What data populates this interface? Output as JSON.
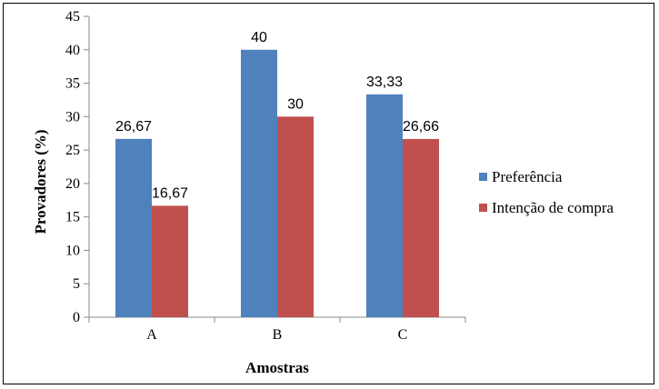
{
  "chart_data": {
    "type": "bar",
    "categories": [
      "A",
      "B",
      "C"
    ],
    "series": [
      {
        "name": "Preferência",
        "values": [
          26.67,
          40,
          33.33
        ],
        "labels": [
          "26,67",
          "40",
          "33,33"
        ],
        "color": "#4F81BD"
      },
      {
        "name": "Intenção de compra",
        "values": [
          16.67,
          30,
          26.66
        ],
        "labels": [
          "16,67",
          "30",
          "26,66"
        ],
        "color": "#C0504D"
      }
    ],
    "xlabel": "Amostras",
    "ylabel": "Provadores (%)",
    "ylim": [
      0,
      45
    ],
    "yticks": [
      0,
      5,
      10,
      15,
      20,
      25,
      30,
      35,
      40,
      45
    ],
    "grid": false,
    "legend": "right"
  }
}
